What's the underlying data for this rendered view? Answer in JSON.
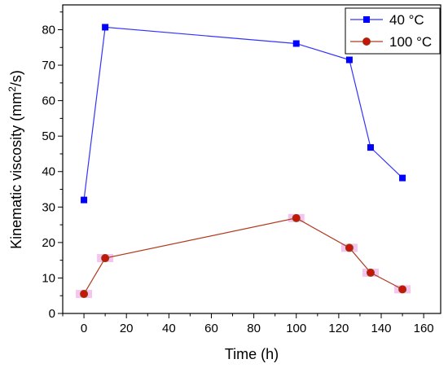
{
  "chart_data": {
    "type": "line",
    "xlabel": "Time (h)",
    "ylabel_prefix": "Kinematic viscosity (mm",
    "ylabel_sup": "2",
    "ylabel_suffix": "/s)",
    "xlim": [
      -10,
      168
    ],
    "ylim": [
      0,
      87
    ],
    "xticks": [
      0,
      20,
      40,
      60,
      80,
      100,
      120,
      140,
      160
    ],
    "yticks": [
      0,
      10,
      20,
      30,
      40,
      50,
      60,
      70,
      80
    ],
    "x_minor_step": 10,
    "y_minor_step": 5,
    "grid": false,
    "legend_position": "top-right",
    "series": [
      {
        "name": "40 °C",
        "marker": "square",
        "line_color": "#3333ff",
        "marker_color": "#0000ff",
        "x": [
          0,
          10,
          100,
          125,
          135,
          150
        ],
        "y": [
          32,
          80.7,
          76.1,
          71.5,
          46.8,
          38.2
        ]
      },
      {
        "name": "100 °C",
        "marker": "circle",
        "line_color": "#b03a1e",
        "marker_color": "#c8150a",
        "marker_edge": "#7a4a10",
        "highlight_color": "#f2b6e8",
        "x": [
          0,
          10,
          100,
          125,
          135,
          150
        ],
        "y": [
          5.5,
          15.6,
          26.9,
          18.5,
          11.5,
          6.8
        ]
      }
    ]
  }
}
